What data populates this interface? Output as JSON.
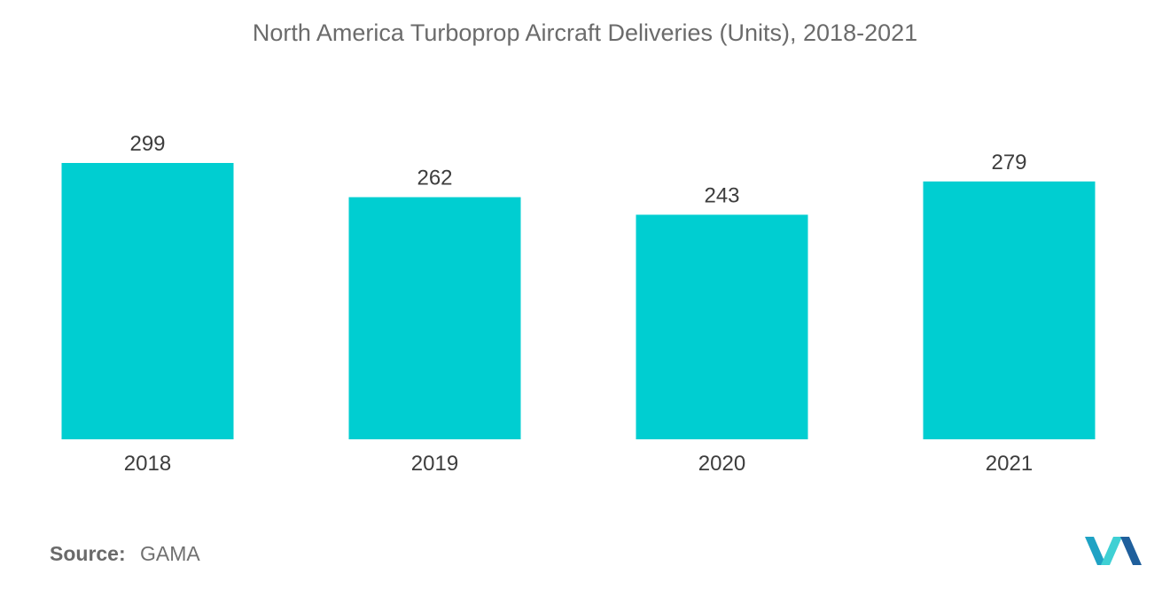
{
  "chart_data": {
    "type": "bar",
    "title": "North America Turboprop Aircraft Deliveries (Units), 2018-2021",
    "categories": [
      "2018",
      "2019",
      "2020",
      "2021"
    ],
    "values": [
      299,
      262,
      243,
      279
    ],
    "xlabel": "",
    "ylabel": "",
    "ylim": [
      0,
      299
    ],
    "grid": false,
    "bar_color": "#00CED1"
  },
  "source": {
    "label": "Source:",
    "value": "GAMA"
  },
  "logo": {
    "icon": "mordor-intelligence-logo-icon",
    "colors": [
      "#1fa2c4",
      "#3fd0d4",
      "#1f5f9c"
    ]
  }
}
